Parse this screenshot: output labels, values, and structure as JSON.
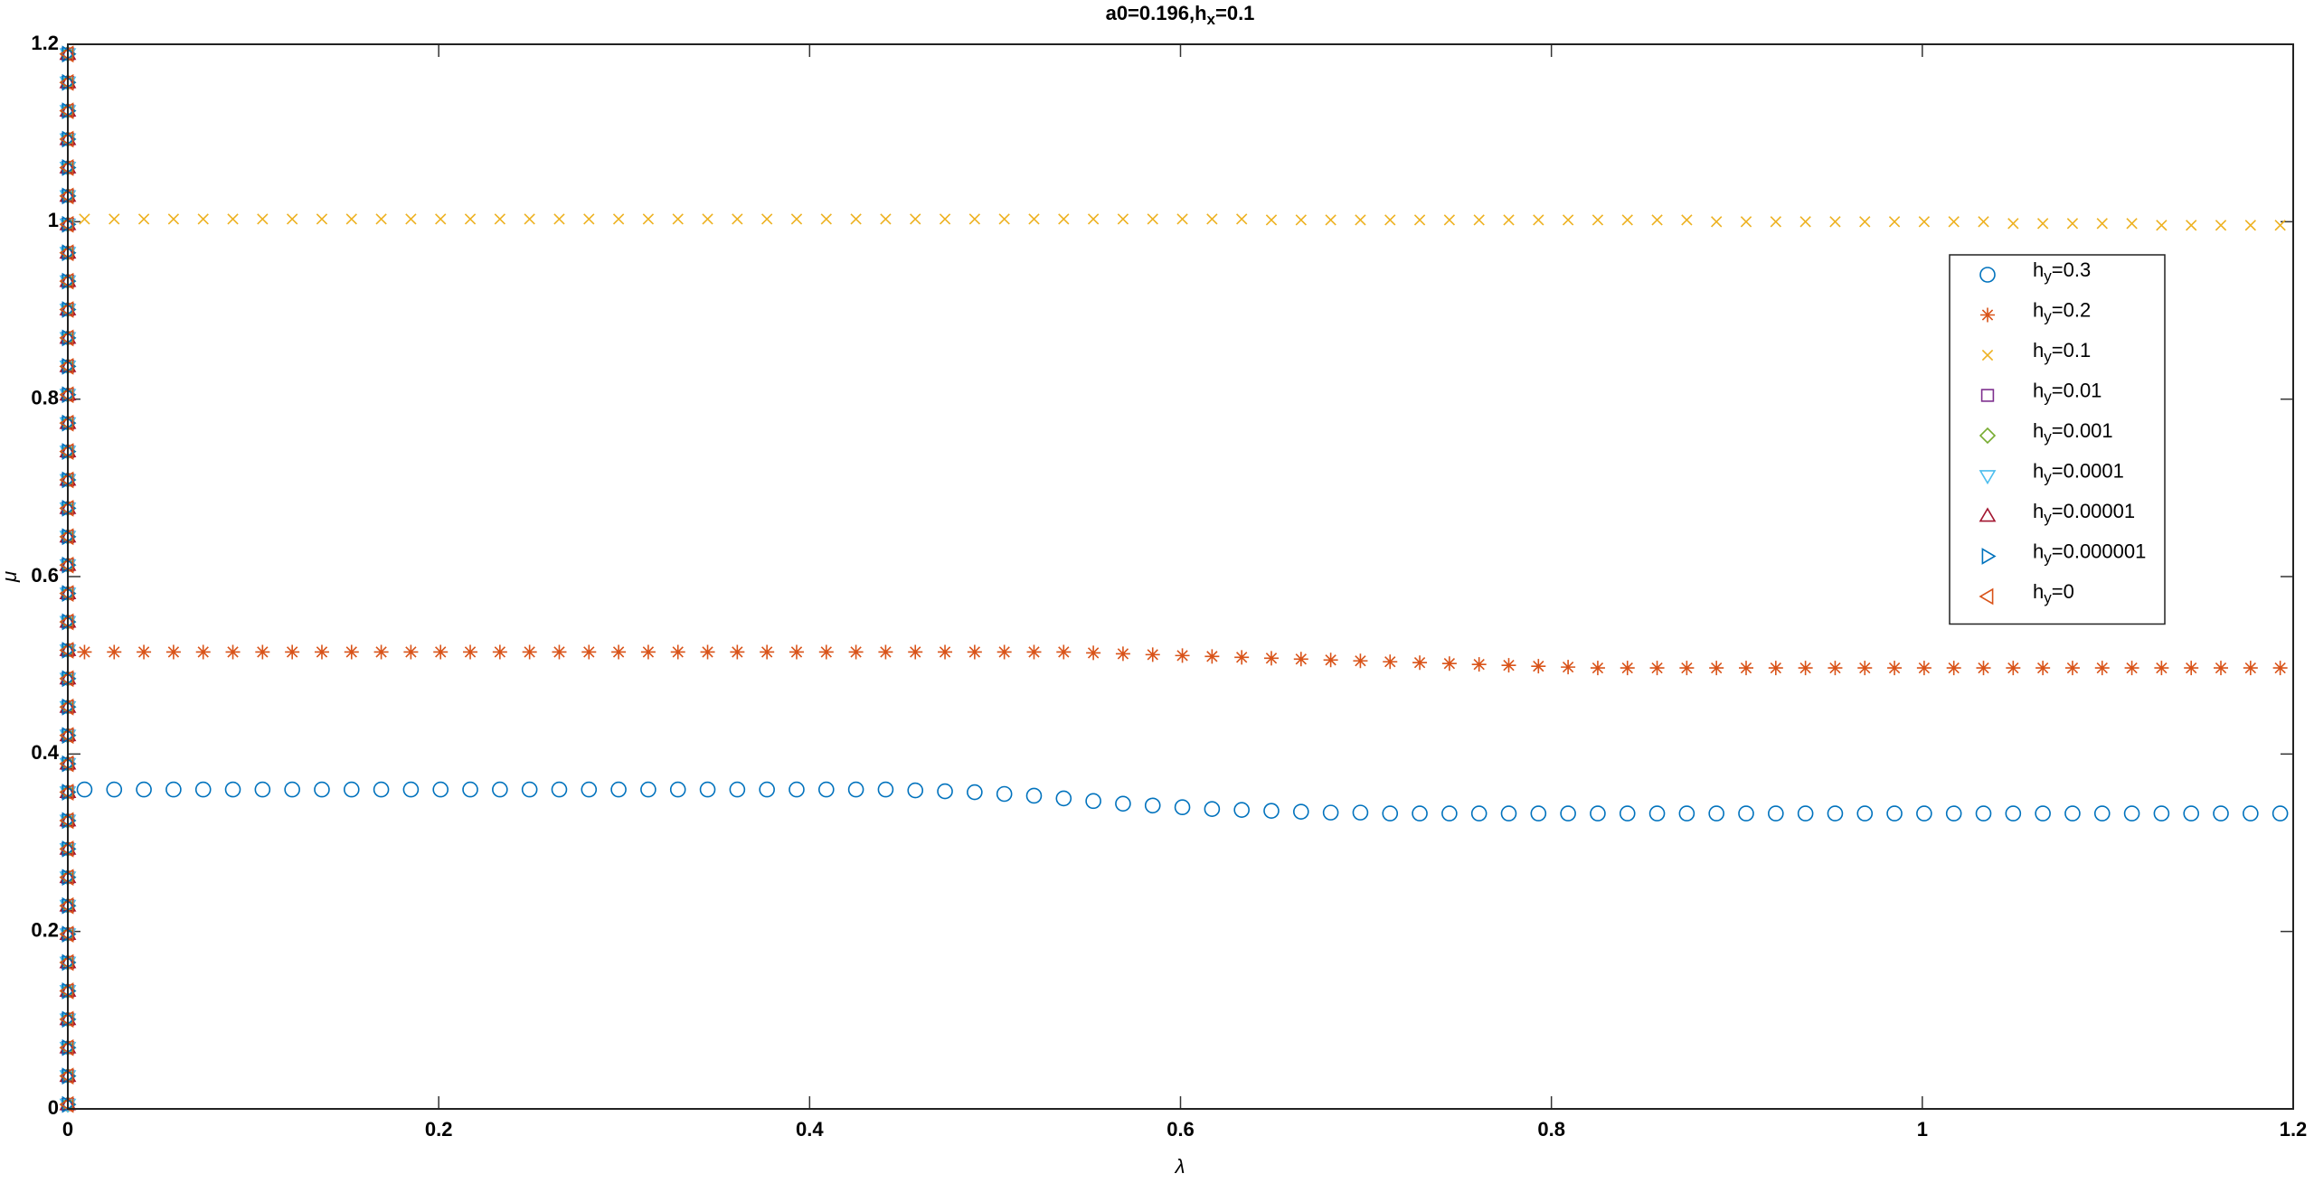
{
  "chart_data": {
    "type": "scatter",
    "title": "a0=0.196,hx=0.1",
    "xlabel": "λ",
    "ylabel": "μ",
    "xlim": [
      0,
      1.2
    ],
    "ylim": [
      0,
      1.2
    ],
    "xticks": [
      0,
      0.2,
      0.4,
      0.6,
      0.8,
      1,
      1.2
    ],
    "yticks": [
      0,
      0.2,
      0.4,
      0.6,
      0.8,
      1,
      1.2
    ],
    "legend": "upper right",
    "x": [
      0.009,
      0.025,
      0.041,
      0.057,
      0.073,
      0.089,
      0.105,
      0.121,
      0.137,
      0.153,
      0.169,
      0.185,
      0.201,
      0.217,
      0.233,
      0.249,
      0.265,
      0.281,
      0.297,
      0.313,
      0.329,
      0.345,
      0.361,
      0.377,
      0.393,
      0.409,
      0.425,
      0.441,
      0.457,
      0.473,
      0.489,
      0.505,
      0.521,
      0.537,
      0.553,
      0.569,
      0.585,
      0.601,
      0.617,
      0.633,
      0.649,
      0.665,
      0.681,
      0.697,
      0.713,
      0.729,
      0.745,
      0.761,
      0.777,
      0.793,
      0.809,
      0.825,
      0.841,
      0.857,
      0.873,
      0.889,
      0.905,
      0.921,
      0.937,
      0.953,
      0.969,
      0.985,
      1.001,
      1.017,
      1.033,
      1.049,
      1.065,
      1.081,
      1.097,
      1.113,
      1.129,
      1.145,
      1.161,
      1.177,
      1.193
    ],
    "series": [
      {
        "name": "hy=0.3",
        "color": "#0072BD",
        "marker": "o",
        "values": [
          0.36,
          0.36,
          0.36,
          0.36,
          0.36,
          0.36,
          0.36,
          0.36,
          0.36,
          0.36,
          0.36,
          0.36,
          0.36,
          0.36,
          0.36,
          0.36,
          0.36,
          0.36,
          0.36,
          0.36,
          0.36,
          0.36,
          0.36,
          0.36,
          0.36,
          0.36,
          0.36,
          0.36,
          0.359,
          0.358,
          0.357,
          0.355,
          0.353,
          0.35,
          0.347,
          0.344,
          0.342,
          0.34,
          0.338,
          0.337,
          0.336,
          0.335,
          0.334,
          0.334,
          0.333,
          0.333,
          0.333,
          0.333,
          0.333,
          0.333,
          0.333,
          0.333,
          0.333,
          0.333,
          0.333,
          0.333,
          0.333,
          0.333,
          0.333,
          0.333,
          0.333,
          0.333,
          0.333,
          0.333,
          0.333,
          0.333,
          0.333,
          0.333,
          0.333,
          0.333,
          0.333,
          0.333,
          0.333,
          0.333,
          0.333
        ]
      },
      {
        "name": "hy=0.2",
        "color": "#D95319",
        "marker": "*",
        "values": [
          0.515,
          0.515,
          0.515,
          0.515,
          0.515,
          0.515,
          0.515,
          0.515,
          0.515,
          0.515,
          0.515,
          0.515,
          0.515,
          0.515,
          0.515,
          0.515,
          0.515,
          0.515,
          0.515,
          0.515,
          0.515,
          0.515,
          0.515,
          0.515,
          0.515,
          0.515,
          0.515,
          0.515,
          0.515,
          0.515,
          0.515,
          0.515,
          0.515,
          0.515,
          0.514,
          0.513,
          0.512,
          0.511,
          0.51,
          0.509,
          0.508,
          0.507,
          0.506,
          0.505,
          0.504,
          0.503,
          0.502,
          0.501,
          0.5,
          0.499,
          0.498,
          0.497,
          0.497,
          0.497,
          0.497,
          0.497,
          0.497,
          0.497,
          0.497,
          0.497,
          0.497,
          0.497,
          0.497,
          0.497,
          0.497,
          0.497,
          0.497,
          0.497,
          0.497,
          0.497,
          0.497,
          0.497,
          0.497,
          0.497,
          0.497
        ]
      },
      {
        "name": "hy=0.1",
        "color": "#EDB120",
        "marker": "x",
        "values": [
          1.003,
          1.003,
          1.003,
          1.003,
          1.003,
          1.003,
          1.003,
          1.003,
          1.003,
          1.003,
          1.003,
          1.003,
          1.003,
          1.003,
          1.003,
          1.003,
          1.003,
          1.003,
          1.003,
          1.003,
          1.003,
          1.003,
          1.003,
          1.003,
          1.003,
          1.003,
          1.003,
          1.003,
          1.003,
          1.003,
          1.003,
          1.003,
          1.003,
          1.003,
          1.003,
          1.003,
          1.003,
          1.003,
          1.003,
          1.003,
          1.002,
          1.002,
          1.002,
          1.002,
          1.002,
          1.002,
          1.002,
          1.002,
          1.002,
          1.002,
          1.002,
          1.002,
          1.002,
          1.002,
          1.002,
          1,
          1,
          1,
          1,
          1,
          1,
          1,
          1,
          1,
          1,
          0.998,
          0.998,
          0.998,
          0.998,
          0.998,
          0.996,
          0.996,
          0.996,
          0.996,
          0.996
        ]
      },
      {
        "name": "hy=0.01",
        "color": "#7E2F8E",
        "marker": "s",
        "x": [
          0,
          0,
          0,
          0,
          0,
          0,
          0,
          0,
          0,
          0,
          0,
          0,
          0,
          0,
          0,
          0,
          0,
          0,
          0,
          0,
          0,
          0,
          0,
          0,
          0,
          0,
          0,
          0,
          0,
          0,
          0,
          0,
          0,
          0,
          0,
          0,
          0,
          0
        ],
        "values": [
          0.005,
          0.037,
          0.069,
          0.101,
          0.133,
          0.165,
          0.197,
          0.229,
          0.261,
          0.293,
          0.325,
          0.357,
          0.389,
          0.421,
          0.453,
          0.485,
          0.517,
          0.549,
          0.581,
          0.613,
          0.645,
          0.677,
          0.709,
          0.741,
          0.773,
          0.805,
          0.837,
          0.869,
          0.901,
          0.933,
          0.965,
          0.997,
          1.029,
          1.061,
          1.093,
          1.125,
          1.157,
          1.189
        ]
      },
      {
        "name": "hy=0.001",
        "color": "#77AC30",
        "marker": "d",
        "x": [
          0,
          0,
          0,
          0,
          0,
          0,
          0,
          0,
          0,
          0,
          0,
          0,
          0,
          0,
          0,
          0,
          0,
          0,
          0,
          0,
          0,
          0,
          0,
          0,
          0,
          0,
          0,
          0,
          0,
          0,
          0,
          0,
          0,
          0,
          0,
          0,
          0,
          0
        ],
        "values": [
          0.005,
          0.037,
          0.069,
          0.101,
          0.133,
          0.165,
          0.197,
          0.229,
          0.261,
          0.293,
          0.325,
          0.357,
          0.389,
          0.421,
          0.453,
          0.485,
          0.517,
          0.549,
          0.581,
          0.613,
          0.645,
          0.677,
          0.709,
          0.741,
          0.773,
          0.805,
          0.837,
          0.869,
          0.901,
          0.933,
          0.965,
          0.997,
          1.029,
          1.061,
          1.093,
          1.125,
          1.157,
          1.189
        ]
      },
      {
        "name": "hy=0.0001",
        "color": "#4DBEEE",
        "marker": "v",
        "x": [
          0,
          0,
          0,
          0,
          0,
          0,
          0,
          0,
          0,
          0,
          0,
          0,
          0,
          0,
          0,
          0,
          0,
          0,
          0,
          0,
          0,
          0,
          0,
          0,
          0,
          0,
          0,
          0,
          0,
          0,
          0,
          0,
          0,
          0,
          0,
          0,
          0,
          0
        ],
        "values": [
          0.005,
          0.037,
          0.069,
          0.101,
          0.133,
          0.165,
          0.197,
          0.229,
          0.261,
          0.293,
          0.325,
          0.357,
          0.389,
          0.421,
          0.453,
          0.485,
          0.517,
          0.549,
          0.581,
          0.613,
          0.645,
          0.677,
          0.709,
          0.741,
          0.773,
          0.805,
          0.837,
          0.869,
          0.901,
          0.933,
          0.965,
          0.997,
          1.029,
          1.061,
          1.093,
          1.125,
          1.157,
          1.189
        ]
      },
      {
        "name": "hy=0.00001",
        "color": "#A2142F",
        "marker": "^",
        "x": [
          0,
          0,
          0,
          0,
          0,
          0,
          0,
          0,
          0,
          0,
          0,
          0,
          0,
          0,
          0,
          0,
          0,
          0,
          0,
          0,
          0,
          0,
          0,
          0,
          0,
          0,
          0,
          0,
          0,
          0,
          0,
          0,
          0,
          0,
          0,
          0,
          0,
          0
        ],
        "values": [
          0.005,
          0.037,
          0.069,
          0.101,
          0.133,
          0.165,
          0.197,
          0.229,
          0.261,
          0.293,
          0.325,
          0.357,
          0.389,
          0.421,
          0.453,
          0.485,
          0.517,
          0.549,
          0.581,
          0.613,
          0.645,
          0.677,
          0.709,
          0.741,
          0.773,
          0.805,
          0.837,
          0.869,
          0.901,
          0.933,
          0.965,
          0.997,
          1.029,
          1.061,
          1.093,
          1.125,
          1.157,
          1.189
        ]
      },
      {
        "name": "hy=0.000001",
        "color": "#0072BD",
        "marker": ">",
        "x": [
          0,
          0,
          0,
          0,
          0,
          0,
          0,
          0,
          0,
          0,
          0,
          0,
          0,
          0,
          0,
          0,
          0,
          0,
          0,
          0,
          0,
          0,
          0,
          0,
          0,
          0,
          0,
          0,
          0,
          0,
          0,
          0,
          0,
          0,
          0,
          0,
          0,
          0
        ],
        "values": [
          0.005,
          0.037,
          0.069,
          0.101,
          0.133,
          0.165,
          0.197,
          0.229,
          0.261,
          0.293,
          0.325,
          0.357,
          0.389,
          0.421,
          0.453,
          0.485,
          0.517,
          0.549,
          0.581,
          0.613,
          0.645,
          0.677,
          0.709,
          0.741,
          0.773,
          0.805,
          0.837,
          0.869,
          0.901,
          0.933,
          0.965,
          0.997,
          1.029,
          1.061,
          1.093,
          1.125,
          1.157,
          1.189
        ]
      },
      {
        "name": "hy=0",
        "color": "#D95319",
        "marker": "<",
        "x": [
          0,
          0,
          0,
          0,
          0,
          0,
          0,
          0,
          0,
          0,
          0,
          0,
          0,
          0,
          0,
          0,
          0,
          0,
          0,
          0,
          0,
          0,
          0,
          0,
          0,
          0,
          0,
          0,
          0,
          0,
          0,
          0,
          0,
          0,
          0,
          0,
          0,
          0
        ],
        "values": [
          0.005,
          0.037,
          0.069,
          0.101,
          0.133,
          0.165,
          0.197,
          0.229,
          0.261,
          0.293,
          0.325,
          0.357,
          0.389,
          0.421,
          0.453,
          0.485,
          0.517,
          0.549,
          0.581,
          0.613,
          0.645,
          0.677,
          0.709,
          0.741,
          0.773,
          0.805,
          0.837,
          0.869,
          0.901,
          0.933,
          0.965,
          0.997,
          1.029,
          1.061,
          1.093,
          1.125,
          1.157,
          1.189
        ]
      }
    ]
  }
}
